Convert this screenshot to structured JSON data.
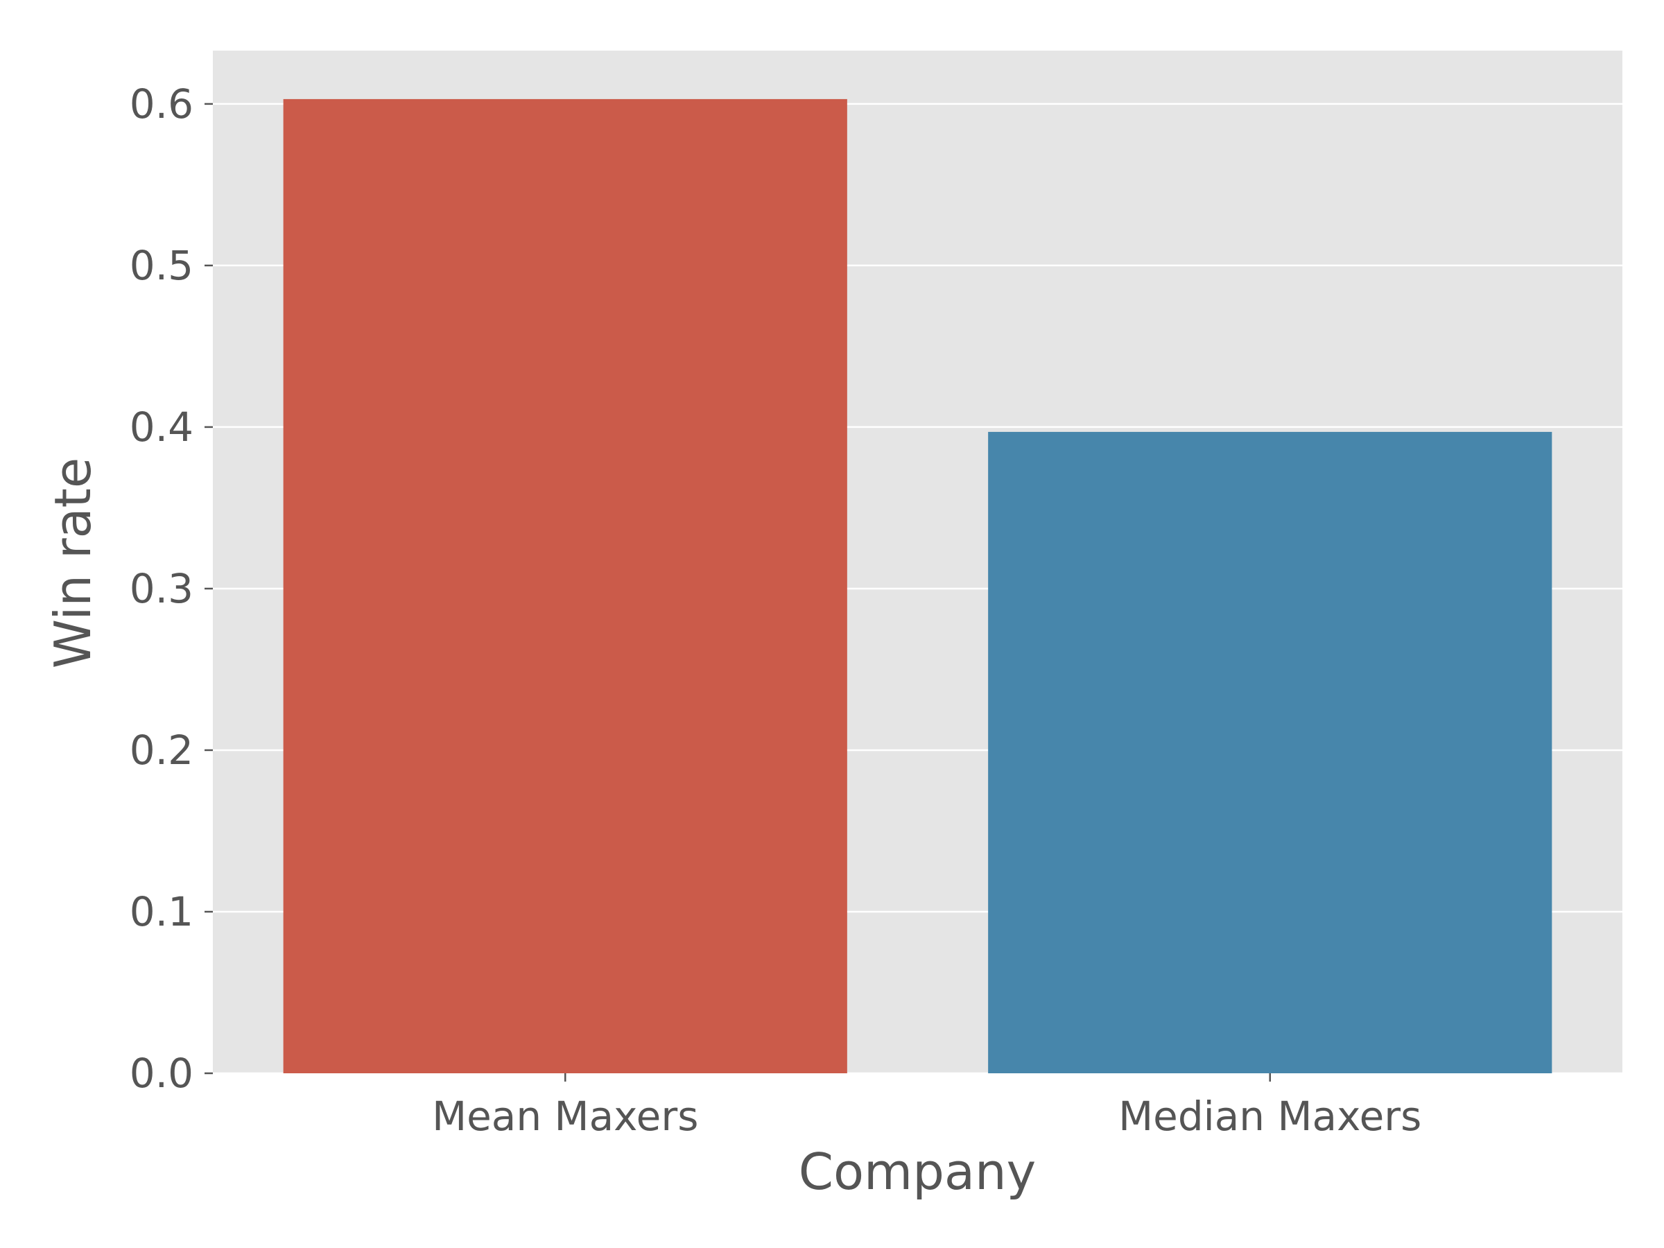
{
  "chart_data": {
    "type": "bar",
    "categories": [
      "Mean Maxers",
      "Median Maxers"
    ],
    "values": [
      0.603,
      0.397
    ],
    "colors": [
      "#cb5b4a",
      "#4786ab"
    ],
    "xlabel": "Company",
    "ylabel": "Win rate",
    "ylim": [
      0,
      0.633
    ],
    "yticks": [
      0.0,
      0.1,
      0.2,
      0.3,
      0.4,
      0.5,
      0.6
    ],
    "ytick_labels": [
      "0.0",
      "0.1",
      "0.2",
      "0.3",
      "0.4",
      "0.5",
      "0.6"
    ],
    "grid": true,
    "background": "#e5e5e5",
    "grid_color": "#ffffff",
    "text_color": "#555555"
  }
}
